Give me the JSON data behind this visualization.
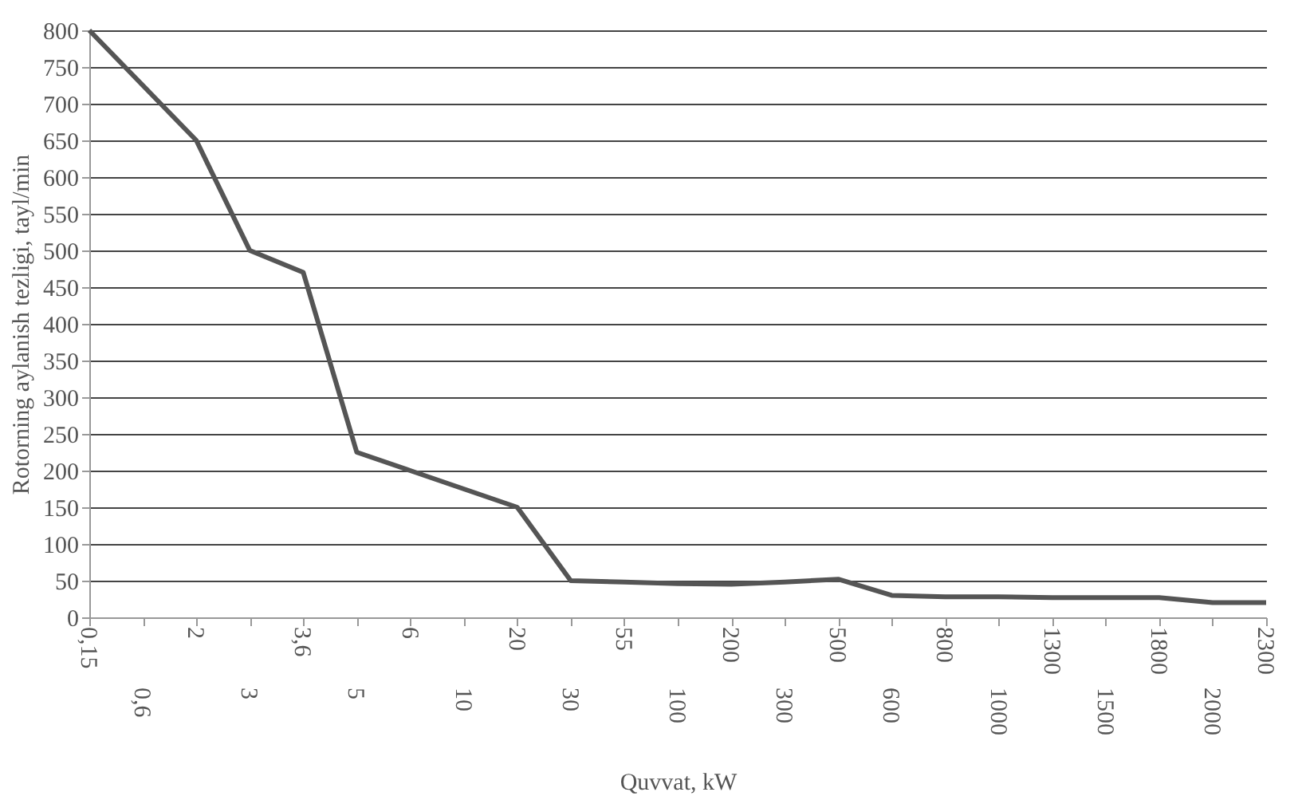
{
  "chart_data": {
    "type": "line",
    "xlabel": "Quvvat, kW",
    "ylabel": "Rotorning aylanish tezligi, tayl/min",
    "categories": [
      "0,15",
      "0,6",
      "2",
      "3",
      "3,6",
      "5",
      "6",
      "10",
      "20",
      "30",
      "55",
      "100",
      "200",
      "300",
      "500",
      "600",
      "800",
      "1000",
      "1300",
      "1500",
      "1800",
      "2000",
      "2300"
    ],
    "series": [
      {
        "color": "#555555",
        "values": [
          800,
          725,
          650,
          500,
          470,
          225,
          200,
          175,
          150,
          50,
          48,
          46,
          45,
          48,
          52,
          30,
          28,
          28,
          27,
          27,
          27,
          20,
          20
        ]
      }
    ],
    "ylim": [
      0,
      800
    ],
    "yticks": [
      0,
      50,
      100,
      150,
      200,
      250,
      300,
      350,
      400,
      450,
      500,
      550,
      600,
      650,
      700,
      750,
      800
    ],
    "grid": "y",
    "marker": "none",
    "line_style": "solid"
  }
}
